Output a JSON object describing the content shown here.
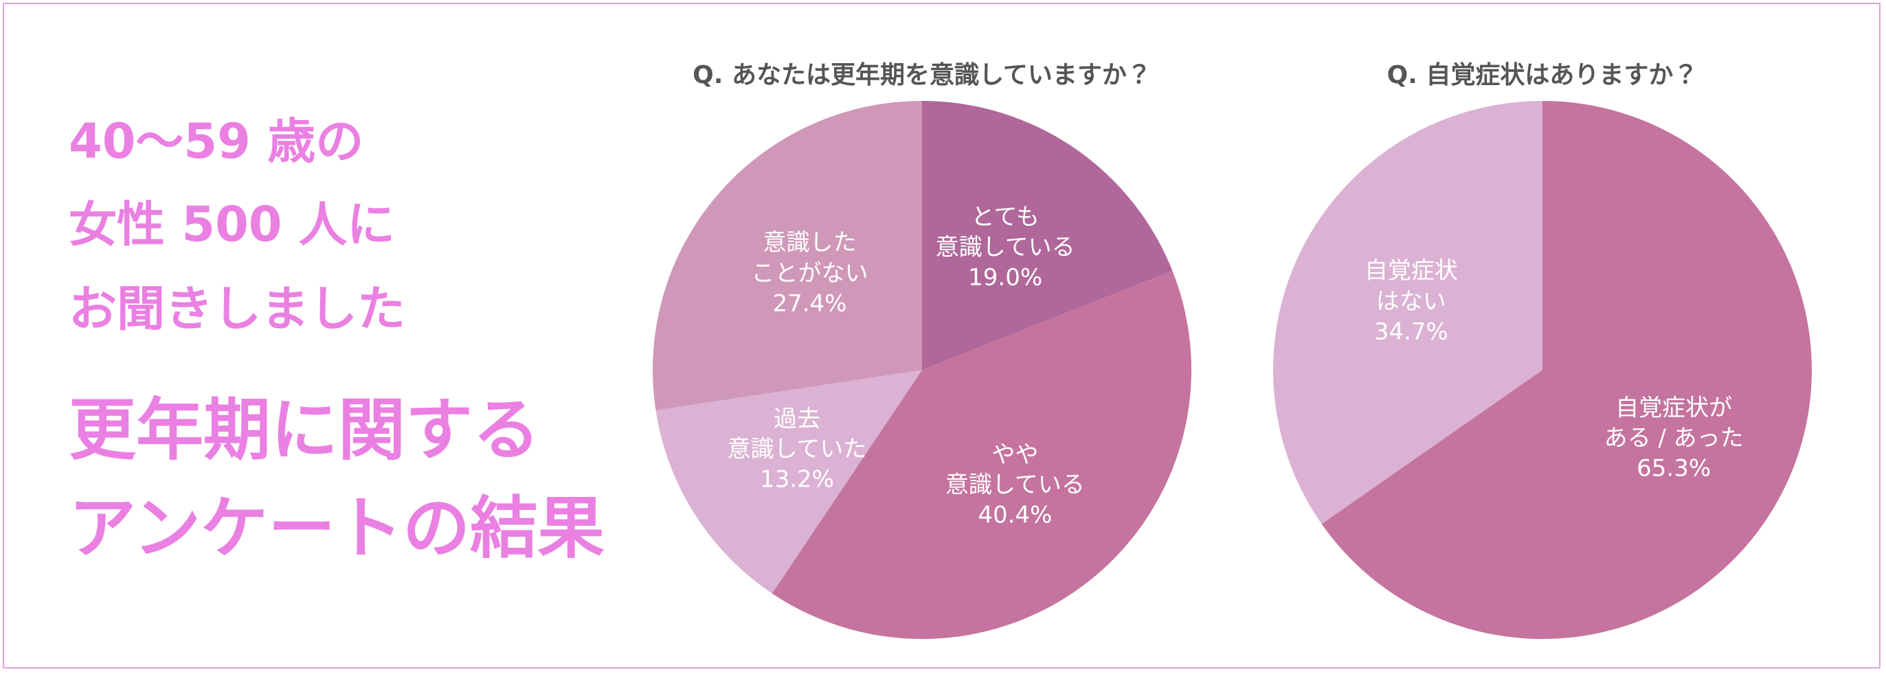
{
  "heading": {
    "lines": [
      "40〜59 歳の",
      "女性 500 人に",
      "お聞きしました"
    ],
    "title": [
      "更年期に関する",
      "アンケートの結果"
    ]
  },
  "chart_data": [
    {
      "type": "pie",
      "title": "Q. あなたは更年期を意識していますか？",
      "categories": [
        "とても\n意識している",
        "やや\n意識している",
        "過去\n意識していた",
        "意識した\nことがない"
      ],
      "values": [
        19.0,
        40.4,
        13.2,
        27.4
      ],
      "value_labels": [
        "19.0%",
        "40.4%",
        "13.2%",
        "27.4%"
      ],
      "colors": [
        "#b0679a",
        "#c4749e",
        "#dbb2d3",
        "#cf97b8"
      ]
    },
    {
      "type": "pie",
      "title": "Q. 自覚症状はありますか？",
      "categories": [
        "自覚症状が\nある / あった",
        "自覚症状\nはない"
      ],
      "values": [
        65.3,
        34.7
      ],
      "value_labels": [
        "65.3%",
        "34.7%"
      ],
      "colors": [
        "#c4749e",
        "#dbb2d3"
      ]
    }
  ]
}
